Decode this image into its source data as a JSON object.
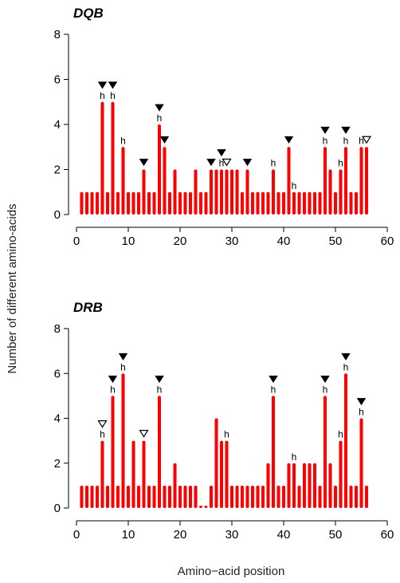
{
  "chart_data": [
    {
      "type": "bar",
      "title": "DQB",
      "xlim": [
        0,
        60
      ],
      "ylim": [
        0,
        8
      ],
      "xticks": [
        0,
        10,
        20,
        30,
        40,
        50,
        60
      ],
      "yticks": [
        0,
        2,
        4,
        6,
        8
      ],
      "positions": [
        1,
        2,
        3,
        4,
        5,
        6,
        7,
        8,
        9,
        10,
        11,
        12,
        13,
        14,
        15,
        16,
        17,
        18,
        19,
        20,
        21,
        22,
        23,
        24,
        25,
        26,
        27,
        28,
        29,
        30,
        31,
        32,
        33,
        34,
        35,
        36,
        37,
        38,
        39,
        40,
        41,
        42,
        43,
        44,
        45,
        46,
        47,
        48,
        49,
        50,
        51,
        52,
        53,
        54,
        55,
        56
      ],
      "values": [
        1,
        1,
        1,
        1,
        5,
        1,
        5,
        1,
        3,
        1,
        1,
        1,
        2,
        1,
        1,
        4,
        3,
        1,
        2,
        1,
        1,
        1,
        2,
        1,
        1,
        2,
        2,
        2,
        2,
        2,
        2,
        1,
        2,
        1,
        1,
        1,
        1,
        2,
        1,
        1,
        3,
        1,
        1,
        1,
        1,
        1,
        1,
        3,
        2,
        1,
        2,
        3,
        1,
        1,
        3,
        3
      ],
      "markers": [
        {
          "position": 5,
          "symbol": "filled-triangle"
        },
        {
          "position": 7,
          "symbol": "filled-triangle"
        },
        {
          "position": 13,
          "symbol": "filled-triangle"
        },
        {
          "position": 16,
          "symbol": "filled-triangle"
        },
        {
          "position": 17,
          "symbol": "filled-triangle"
        },
        {
          "position": 26,
          "symbol": "filled-triangle"
        },
        {
          "position": 28,
          "symbol": "filled-triangle"
        },
        {
          "position": 29,
          "symbol": "open-triangle"
        },
        {
          "position": 33,
          "symbol": "filled-triangle"
        },
        {
          "position": 41,
          "symbol": "filled-triangle"
        },
        {
          "position": 48,
          "symbol": "filled-triangle"
        },
        {
          "position": 52,
          "symbol": "filled-triangle"
        },
        {
          "position": 56,
          "symbol": "open-triangle"
        }
      ],
      "h_labels": [
        {
          "position": 5,
          "text": "h"
        },
        {
          "position": 7,
          "text": "h"
        },
        {
          "position": 9,
          "text": "h"
        },
        {
          "position": 16,
          "text": "h"
        },
        {
          "position": 28,
          "text": "h"
        },
        {
          "position": 38,
          "text": "h"
        },
        {
          "position": 42,
          "text": "h"
        },
        {
          "position": 48,
          "text": "h"
        },
        {
          "position": 51,
          "text": "h"
        },
        {
          "position": 52,
          "text": "h"
        },
        {
          "position": 55,
          "text": "h"
        }
      ],
      "bar_color": "#ff0000"
    },
    {
      "type": "bar",
      "title": "DRB",
      "xlim": [
        0,
        60
      ],
      "ylim": [
        0,
        8
      ],
      "xticks": [
        0,
        10,
        20,
        30,
        40,
        50,
        60
      ],
      "yticks": [
        0,
        2,
        4,
        6,
        8
      ],
      "positions": [
        1,
        2,
        3,
        4,
        5,
        6,
        7,
        8,
        9,
        10,
        11,
        12,
        13,
        14,
        15,
        16,
        17,
        18,
        19,
        20,
        21,
        22,
        23,
        24,
        25,
        26,
        27,
        28,
        29,
        30,
        31,
        32,
        33,
        34,
        35,
        36,
        37,
        38,
        39,
        40,
        41,
        42,
        43,
        44,
        45,
        46,
        47,
        48,
        49,
        50,
        51,
        52,
        53,
        54,
        55,
        56
      ],
      "values": [
        1,
        1,
        1,
        1,
        3,
        1,
        5,
        1,
        6,
        1,
        3,
        1,
        3,
        1,
        1,
        5,
        1,
        1,
        2,
        1,
        1,
        1,
        1,
        0,
        0,
        1,
        4,
        3,
        3,
        1,
        1,
        1,
        1,
        1,
        1,
        1,
        2,
        5,
        1,
        1,
        2,
        2,
        1,
        2,
        2,
        2,
        1,
        5,
        2,
        1,
        3,
        6,
        1,
        1,
        4,
        1
      ],
      "markers": [
        {
          "position": 5,
          "symbol": "open-triangle"
        },
        {
          "position": 7,
          "symbol": "filled-triangle"
        },
        {
          "position": 9,
          "symbol": "filled-triangle"
        },
        {
          "position": 13,
          "symbol": "open-triangle"
        },
        {
          "position": 16,
          "symbol": "filled-triangle"
        },
        {
          "position": 38,
          "symbol": "filled-triangle"
        },
        {
          "position": 48,
          "symbol": "filled-triangle"
        },
        {
          "position": 52,
          "symbol": "filled-triangle"
        },
        {
          "position": 55,
          "symbol": "filled-triangle"
        }
      ],
      "h_labels": [
        {
          "position": 5,
          "text": "h"
        },
        {
          "position": 7,
          "text": "h"
        },
        {
          "position": 9,
          "text": "h"
        },
        {
          "position": 16,
          "text": "h"
        },
        {
          "position": 29,
          "text": "h"
        },
        {
          "position": 38,
          "text": "h"
        },
        {
          "position": 42,
          "text": "h"
        },
        {
          "position": 48,
          "text": "h"
        },
        {
          "position": 51,
          "text": "h"
        },
        {
          "position": 52,
          "text": "h"
        },
        {
          "position": 55,
          "text": "h"
        }
      ],
      "bar_color": "#ff0000"
    }
  ],
  "shared_ylabel": "Number of different amino-acids",
  "shared_xlabel": "Amino−acid position"
}
